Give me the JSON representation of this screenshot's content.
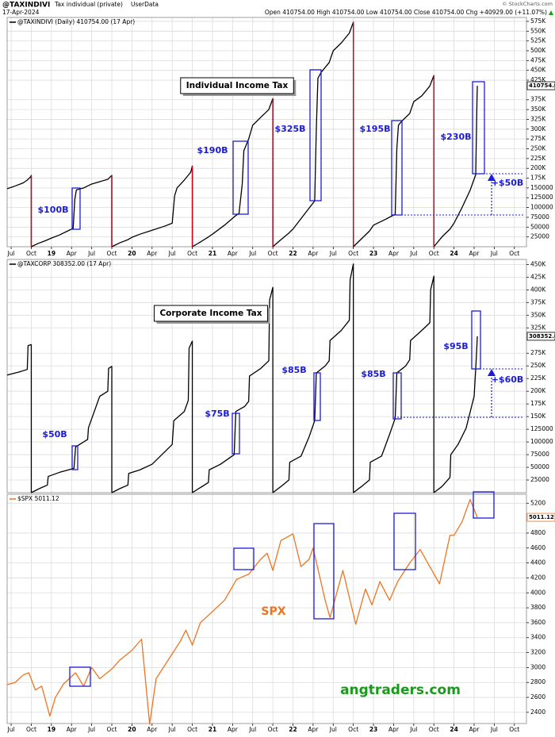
{
  "chart_data": [
    {
      "type": "line",
      "title": "@TAXINDIVI",
      "subtitle": "Tax individual (private)",
      "source_type": "UserData",
      "date": "17-Apr-2024",
      "quote": "Open 410754.00  High 410754.00  Low 410754.00  Close 410754.00  Chg +40929.00 (+11.07%)",
      "credit": "© StockCharts.com",
      "grid": true,
      "xlim": [
        2018.45,
        2024.9
      ],
      "xticks": [
        {
          "value": 2018.5,
          "label": "Jul"
        },
        {
          "value": 2018.75,
          "label": "Oct"
        },
        {
          "value": 2019,
          "label": "19"
        },
        {
          "value": 2019.25,
          "label": "Apr"
        },
        {
          "value": 2019.5,
          "label": "Jul"
        },
        {
          "value": 2019.75,
          "label": "Oct"
        },
        {
          "value": 2020,
          "label": "20"
        },
        {
          "value": 2020.25,
          "label": "Apr"
        },
        {
          "value": 2020.5,
          "label": "Jul"
        },
        {
          "value": 2020.75,
          "label": "Oct"
        },
        {
          "value": 2021,
          "label": "21"
        },
        {
          "value": 2021.25,
          "label": "Apr"
        },
        {
          "value": 2021.5,
          "label": "Jul"
        },
        {
          "value": 2021.75,
          "label": "Oct"
        },
        {
          "value": 2022,
          "label": "22"
        },
        {
          "value": 2022.25,
          "label": "Apr"
        },
        {
          "value": 2022.5,
          "label": "Jul"
        },
        {
          "value": 2022.75,
          "label": "Oct"
        },
        {
          "value": 2023,
          "label": "23"
        },
        {
          "value": 2023.25,
          "label": "Apr"
        },
        {
          "value": 2023.5,
          "label": "Jul"
        },
        {
          "value": 2023.75,
          "label": "Oct"
        },
        {
          "value": 2024,
          "label": "24"
        },
        {
          "value": 2024.25,
          "label": "Apr"
        },
        {
          "value": 2024.5,
          "label": "Jul"
        },
        {
          "value": 2024.75,
          "label": "Oct"
        }
      ],
      "ylim": [
        0,
        585000
      ],
      "yticks": [
        {
          "value": 575000,
          "label": "575K"
        },
        {
          "value": 550000,
          "label": "550K"
        },
        {
          "value": 525000,
          "label": "525K"
        },
        {
          "value": 500000,
          "label": "500K"
        },
        {
          "value": 475000,
          "label": "475K"
        },
        {
          "value": 450000,
          "label": "450K"
        },
        {
          "value": 425000,
          "label": "425K"
        },
        {
          "value": 375000,
          "label": "375K"
        },
        {
          "value": 350000,
          "label": "350K"
        },
        {
          "value": 325000,
          "label": "325K"
        },
        {
          "value": 300000,
          "label": "300K"
        },
        {
          "value": 275000,
          "label": "275K"
        },
        {
          "value": 250000,
          "label": "250K"
        },
        {
          "value": 225000,
          "label": "225K"
        },
        {
          "value": 200000,
          "label": "200K"
        },
        {
          "value": 175000,
          "label": "175K"
        },
        150000,
        125000,
        100000,
        75000,
        50000,
        25000
      ],
      "last_value": {
        "value": 410754,
        "label": "410754.00"
      },
      "x": [
        2018.45,
        2018.55,
        2018.65,
        2018.7,
        2018.74,
        2018.75,
        2018.75,
        2018.83,
        2018.92,
        2019.0,
        2019.1,
        2019.2,
        2019.27,
        2019.29,
        2019.31,
        2019.4,
        2019.5,
        2019.6,
        2019.7,
        2019.75,
        2019.75,
        2019.85,
        2019.95,
        2020.0,
        2020.1,
        2020.25,
        2020.4,
        2020.5,
        2020.53,
        2020.56,
        2020.65,
        2020.73,
        2020.75,
        2020.75,
        2020.85,
        2020.95,
        2021.0,
        2021.15,
        2021.28,
        2021.33,
        2021.37,
        2021.39,
        2021.42,
        2021.45,
        2021.5,
        2021.6,
        2021.7,
        2021.75,
        2021.75,
        2021.85,
        2021.95,
        2022.0,
        2022.15,
        2022.27,
        2022.29,
        2022.31,
        2022.35,
        2022.45,
        2022.5,
        2022.6,
        2022.7,
        2022.75,
        2022.75,
        2022.85,
        2022.95,
        2023.0,
        2023.15,
        2023.27,
        2023.29,
        2023.31,
        2023.35,
        2023.45,
        2023.5,
        2023.6,
        2023.7,
        2023.75,
        2023.75,
        2023.85,
        2023.95,
        2024.0,
        2024.1,
        2024.2,
        2024.27,
        2024.285,
        2024.29
      ],
      "series": [
        {
          "name": "@TAXINDIVI (Daily) 410754.00 (17 Apr)",
          "color": "#000000",
          "down_color": "#d0021b",
          "values": [
            148000,
            155000,
            163000,
            170000,
            178000,
            182000,
            0,
            8000,
            15000,
            22000,
            30000,
            40000,
            47000,
            120000,
            145000,
            150000,
            160000,
            166000,
            172000,
            182000,
            0,
            10000,
            18000,
            24000,
            32000,
            42000,
            52000,
            60000,
            130000,
            150000,
            170000,
            190000,
            206000,
            0,
            12000,
            25000,
            32000,
            55000,
            78000,
            85000,
            160000,
            245000,
            260000,
            275000,
            310000,
            330000,
            350000,
            378000,
            0,
            18000,
            35000,
            45000,
            85000,
            117000,
            300000,
            430000,
            445000,
            470000,
            500000,
            520000,
            545000,
            573000,
            0,
            20000,
            40000,
            55000,
            70000,
            83000,
            250000,
            310000,
            320000,
            340000,
            370000,
            385000,
            410000,
            437000,
            0,
            25000,
            45000,
            60000,
            100000,
            144000,
            184000,
            369825,
            410754
          ]
        }
      ],
      "annotations": [
        "Individual Income Tax",
        "$100B",
        "$190B",
        "$325B",
        "$195B",
        "$230B",
        "+$50B"
      ]
    },
    {
      "type": "line",
      "grid": true,
      "xlim": [
        2018.45,
        2024.9
      ],
      "ylim": [
        0,
        460000
      ],
      "yticks": [
        {
          "value": 450000,
          "label": "450K"
        },
        {
          "value": 425000,
          "label": "425K"
        },
        {
          "value": 400000,
          "label": "400K"
        },
        {
          "value": 375000,
          "label": "375K"
        },
        {
          "value": 350000,
          "label": "350K"
        },
        {
          "value": 325000,
          "label": "325K"
        },
        {
          "value": 275000,
          "label": "275K"
        },
        {
          "value": 250000,
          "label": "250K"
        },
        {
          "value": 225000,
          "label": "225K"
        },
        {
          "value": 200000,
          "label": "200K"
        },
        {
          "value": 175000,
          "label": "175K"
        },
        {
          "value": 150000,
          "label": "150K"
        },
        125000,
        100000,
        75000,
        50000,
        25000
      ],
      "last_value": {
        "value": 308352,
        "label": "308352.00"
      },
      "x": [
        2018.45,
        2018.6,
        2018.7,
        2018.71,
        2018.75,
        2018.75,
        2018.85,
        2018.95,
        2018.96,
        2019.1,
        2019.28,
        2019.3,
        2019.4,
        2019.45,
        2019.46,
        2019.6,
        2019.7,
        2019.71,
        2019.75,
        2019.75,
        2019.85,
        2019.95,
        2019.96,
        2020.1,
        2020.25,
        2020.5,
        2020.52,
        2020.65,
        2020.7,
        2020.71,
        2020.75,
        2020.75,
        2020.85,
        2020.95,
        2020.96,
        2021.1,
        2021.27,
        2021.29,
        2021.4,
        2021.45,
        2021.46,
        2021.6,
        2021.7,
        2021.71,
        2021.75,
        2021.75,
        2021.85,
        2021.95,
        2021.96,
        2022.1,
        2022.2,
        2022.27,
        2022.29,
        2022.4,
        2022.45,
        2022.46,
        2022.6,
        2022.7,
        2022.71,
        2022.75,
        2022.75,
        2022.85,
        2022.95,
        2022.96,
        2023.1,
        2023.2,
        2023.27,
        2023.29,
        2023.4,
        2023.45,
        2023.46,
        2023.6,
        2023.7,
        2023.71,
        2023.75,
        2023.75,
        2023.85,
        2023.95,
        2023.96,
        2024.05,
        2024.15,
        2024.25,
        2024.27,
        2024.29
      ],
      "series": [
        {
          "name": "@TAXCORP 308352.00 (17 Apr)",
          "color": "#000000",
          "values": [
            232000,
            238000,
            243000,
            290000,
            292000,
            0,
            8000,
            15000,
            32000,
            40000,
            48000,
            90000,
            100000,
            105000,
            128000,
            190000,
            200000,
            245000,
            249000,
            0,
            8000,
            15000,
            38000,
            45000,
            56000,
            95000,
            142000,
            160000,
            182000,
            285000,
            299000,
            0,
            10000,
            20000,
            45000,
            56000,
            75000,
            160000,
            170000,
            180000,
            230000,
            245000,
            260000,
            380000,
            405000,
            0,
            12000,
            25000,
            60000,
            72000,
            110000,
            142000,
            236000,
            250000,
            260000,
            300000,
            320000,
            340000,
            420000,
            451000,
            0,
            12000,
            25000,
            60000,
            72000,
            115000,
            147000,
            236000,
            250000,
            262000,
            300000,
            320000,
            335000,
            400000,
            427000,
            0,
            12000,
            30000,
            75000,
            95000,
            127000,
            190000,
            244000,
            308352
          ]
        }
      ],
      "annotations": [
        "Corporate Income Tax",
        "$50B",
        "$75B",
        "$85B",
        "$85B",
        "$95B",
        "+$60B"
      ]
    },
    {
      "type": "line",
      "grid": true,
      "xlim": [
        2018.45,
        2024.9
      ],
      "xticks": [
        {
          "value": 2018.5,
          "label": "Jul"
        },
        {
          "value": 2018.75,
          "label": "Oct"
        },
        {
          "value": 2019,
          "label": "19"
        },
        {
          "value": 2019.25,
          "label": "Apr"
        },
        {
          "value": 2019.5,
          "label": "Jul"
        },
        {
          "value": 2019.75,
          "label": "Oct"
        },
        {
          "value": 2020,
          "label": "20"
        },
        {
          "value": 2020.25,
          "label": "Apr"
        },
        {
          "value": 2020.5,
          "label": "Jul"
        },
        {
          "value": 2020.75,
          "label": "Oct"
        },
        {
          "value": 2021,
          "label": "21"
        },
        {
          "value": 2021.25,
          "label": "Apr"
        },
        {
          "value": 2021.5,
          "label": "Jul"
        },
        {
          "value": 2021.75,
          "label": "Oct"
        },
        {
          "value": 2022,
          "label": "22"
        },
        {
          "value": 2022.25,
          "label": "Apr"
        },
        {
          "value": 2022.5,
          "label": "Jul"
        },
        {
          "value": 2022.75,
          "label": "Oct"
        },
        {
          "value": 2023,
          "label": "23"
        },
        {
          "value": 2023.25,
          "label": "Apr"
        },
        {
          "value": 2023.5,
          "label": "Jul"
        },
        {
          "value": 2023.75,
          "label": "Oct"
        },
        {
          "value": 2024,
          "label": "24"
        },
        {
          "value": 2024.25,
          "label": "Apr"
        },
        {
          "value": 2024.5,
          "label": "Jul"
        },
        {
          "value": 2024.75,
          "label": "Oct"
        }
      ],
      "ylim": [
        2250,
        5320
      ],
      "yticks": [
        5200,
        4800,
        4600,
        4400,
        4200,
        4000,
        3800,
        3600,
        3400,
        3200,
        3000,
        2800,
        2600,
        2400
      ],
      "last_value": {
        "value": 5011.12,
        "label": "5011.12"
      },
      "x": [
        2018.45,
        2018.55,
        2018.65,
        2018.72,
        2018.8,
        2018.88,
        2018.98,
        2019.05,
        2019.15,
        2019.3,
        2019.4,
        2019.5,
        2019.6,
        2019.75,
        2019.85,
        2020.0,
        2020.12,
        2020.22,
        2020.3,
        2020.45,
        2020.6,
        2020.67,
        2020.75,
        2020.85,
        2021.0,
        2021.15,
        2021.3,
        2021.45,
        2021.6,
        2021.68,
        2021.75,
        2021.85,
        2022.0,
        2022.1,
        2022.2,
        2022.25,
        2022.4,
        2022.46,
        2022.62,
        2022.78,
        2022.9,
        2022.98,
        2023.08,
        2023.2,
        2023.3,
        2023.45,
        2023.58,
        2023.82,
        2023.95,
        2024.0,
        2024.1,
        2024.2,
        2024.29
      ],
      "series": [
        {
          "name": "$SPX 5011.12",
          "color": "#ee7420",
          "values": [
            2770,
            2800,
            2900,
            2930,
            2700,
            2750,
            2350,
            2600,
            2780,
            2930,
            2750,
            3000,
            2850,
            2980,
            3100,
            3230,
            3380,
            2240,
            2850,
            3100,
            3350,
            3500,
            3300,
            3600,
            3750,
            3900,
            4180,
            4250,
            4450,
            4530,
            4300,
            4700,
            4790,
            4350,
            4450,
            4600,
            3900,
            3670,
            4300,
            3580,
            4050,
            3840,
            4150,
            3900,
            4150,
            4400,
            4580,
            4120,
            4770,
            4770,
            4950,
            5250,
            5011.12
          ]
        }
      ],
      "annotations": [
        "SPX",
        "angtraders.com"
      ]
    }
  ]
}
